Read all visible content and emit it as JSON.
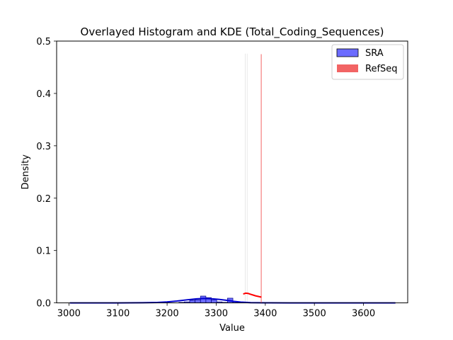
{
  "chart_data": {
    "type": "histogram",
    "title": "Overlayed Histogram and KDE (Total_Coding_Sequences)",
    "xlabel": "Value",
    "ylabel": "Density",
    "xlim": [
      2975,
      3690
    ],
    "ylim": [
      0,
      0.5
    ],
    "xticks": [
      3000,
      3100,
      3200,
      3300,
      3400,
      3500,
      3600
    ],
    "yticks": [
      0.0,
      0.1,
      0.2,
      0.3,
      0.4,
      0.5
    ],
    "xtick_labels": [
      "3000",
      "3100",
      "3200",
      "3300",
      "3400",
      "3500",
      "3600"
    ],
    "ytick_labels": [
      "0.0",
      "0.1",
      "0.2",
      "0.3",
      "0.4",
      "0.5"
    ],
    "legend": {
      "position": "top-right",
      "entries": [
        {
          "label": "SRA",
          "color": "#6b6bff"
        },
        {
          "label": "RefSeq",
          "color": "#f26464"
        }
      ]
    },
    "series": [
      {
        "name": "SRA",
        "kind": "histogram",
        "fill": "#6b6bff",
        "edge": "#000080",
        "bin_width": 11,
        "bins": [
          {
            "x": 3224,
            "density": 0.001
          },
          {
            "x": 3235,
            "density": 0.002
          },
          {
            "x": 3246,
            "density": 0.005
          },
          {
            "x": 3257,
            "density": 0.006
          },
          {
            "x": 3268,
            "density": 0.013
          },
          {
            "x": 3279,
            "density": 0.01
          },
          {
            "x": 3290,
            "density": 0.006
          },
          {
            "x": 3301,
            "density": 0.002
          },
          {
            "x": 3312,
            "density": 0.001
          },
          {
            "x": 3323,
            "density": 0.009
          },
          {
            "x": 3334,
            "density": 0.002
          }
        ]
      },
      {
        "name": "SRA",
        "kind": "kde",
        "color": "#0000cc",
        "x": [
          3002,
          3100,
          3150,
          3180,
          3200,
          3220,
          3240,
          3260,
          3275,
          3290,
          3305,
          3320,
          3335,
          3350,
          3370,
          3400,
          3450,
          3500,
          3600,
          3665
        ],
        "y": [
          0.0,
          0.0,
          0.0003,
          0.0008,
          0.0018,
          0.0035,
          0.0058,
          0.0078,
          0.0085,
          0.008,
          0.0068,
          0.005,
          0.003,
          0.0015,
          0.0005,
          0.0001,
          0.0,
          0.0,
          0.0,
          0.0
        ]
      },
      {
        "name": "RefSeq",
        "kind": "histogram",
        "fill": "#f26464",
        "bin_width": 0.5,
        "bins": [
          {
            "x": 3391,
            "density": 0.475
          }
        ]
      },
      {
        "name": "RefSeq",
        "kind": "kde",
        "color": "#ff0000",
        "x": [
          3355,
          3360,
          3365,
          3370,
          3375,
          3380,
          3385,
          3392
        ],
        "y": [
          0.017,
          0.0185,
          0.018,
          0.0165,
          0.015,
          0.0135,
          0.0125,
          0.011
        ]
      }
    ]
  }
}
